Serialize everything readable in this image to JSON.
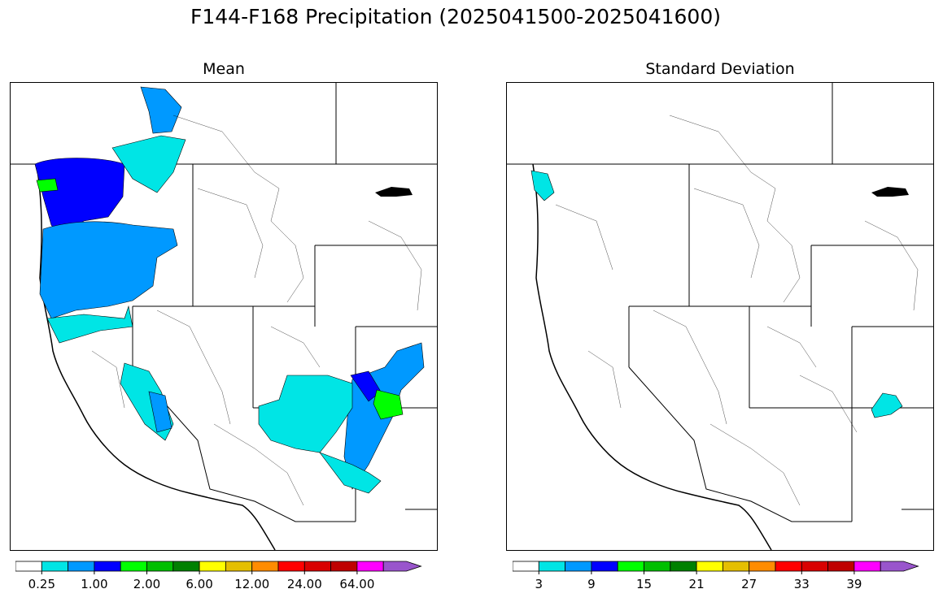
{
  "figure": {
    "title": "F144-F168 Precipitation (2025041500-2025041600)"
  },
  "panels": [
    {
      "title": "Mean",
      "colorbar": {
        "colors": [
          "#ffffff",
          "#00e5e5",
          "#0099ff",
          "#0000ff",
          "#00ff00",
          "#00bf00",
          "#008000",
          "#ffff00",
          "#e5bf00",
          "#ff8c00",
          "#ff0000",
          "#d90000",
          "#bf0000",
          "#ff00ff",
          "#9955cc"
        ],
        "tick_labels": [
          "0.25",
          "1.00",
          "2.00",
          "6.00",
          "12.00",
          "24.00",
          "64.00"
        ],
        "extend": "max"
      }
    },
    {
      "title": "Standard Deviation",
      "colorbar": {
        "colors": [
          "#ffffff",
          "#00e5e5",
          "#0099ff",
          "#0000ff",
          "#00ff00",
          "#00bf00",
          "#008000",
          "#ffff00",
          "#e5bf00",
          "#ff8c00",
          "#ff0000",
          "#d90000",
          "#bf0000",
          "#ff00ff",
          "#9955cc"
        ],
        "tick_labels": [
          "3",
          "9",
          "15",
          "21",
          "27",
          "33",
          "39"
        ],
        "extend": "max"
      }
    }
  ]
}
